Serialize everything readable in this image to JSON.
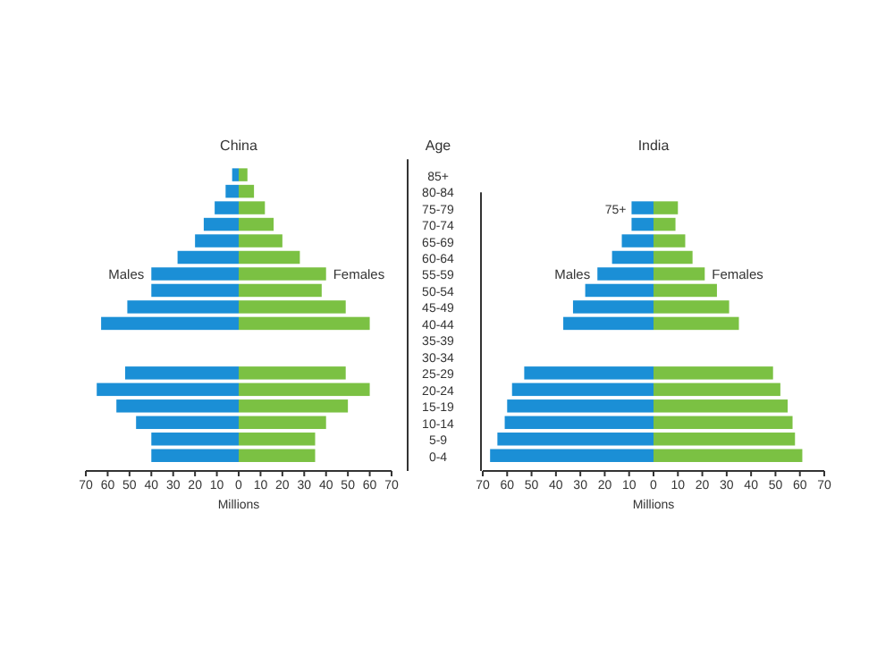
{
  "chart_data": [
    {
      "type": "bar",
      "orientation": "horizontal",
      "stacked": true,
      "title": "China",
      "ylabel": "Age",
      "xlabel": "Millions",
      "grid": false,
      "categories": [
        "85+",
        "80-84",
        "75-79",
        "70-74",
        "65-69",
        "60-64",
        "55-59",
        "50-54",
        "45-49",
        "40-44",
        "35-39",
        "30-34",
        "25-29",
        "20-24",
        "15-19",
        "10-14",
        "5-9",
        "0-4"
      ],
      "series": [
        {
          "name": "Males",
          "color": "#1b8fd6",
          "values": [
            -3,
            -6,
            -11,
            -16,
            -20,
            -28,
            -40,
            -40,
            -51,
            -63,
            null,
            null,
            -52,
            -65,
            -56,
            -47,
            -40,
            -40
          ]
        },
        {
          "name": "Females",
          "color": "#7bc143",
          "values": [
            4,
            7,
            12,
            16,
            20,
            28,
            40,
            38,
            49,
            60,
            null,
            null,
            49,
            60,
            50,
            40,
            35,
            35
          ]
        }
      ],
      "xlim": [
        -70,
        70
      ],
      "xticks": [
        {
          "value": -70,
          "label": "70"
        },
        {
          "value": -60,
          "label": "60"
        },
        {
          "value": -50,
          "label": "50"
        },
        {
          "value": -40,
          "label": "40"
        },
        {
          "value": -30,
          "label": "30"
        },
        {
          "value": -20,
          "label": "20"
        },
        {
          "value": -10,
          "label": "10"
        },
        0,
        10,
        20,
        30,
        40,
        50,
        60,
        70
      ]
    },
    {
      "type": "bar",
      "orientation": "horizontal",
      "stacked": true,
      "title": "India",
      "xlabel": "Millions",
      "grid": false,
      "annotations": [
        "75+"
      ],
      "categories": [
        null,
        null,
        null,
        null,
        null,
        null,
        null,
        null,
        null,
        null,
        null,
        null,
        null,
        null,
        null,
        null
      ],
      "series": [
        {
          "name": "Males",
          "color": "#1b8fd6",
          "values": [
            -9,
            -9,
            -13,
            -17,
            -23,
            -28,
            -33,
            -37,
            null,
            null,
            -53,
            -58,
            -60,
            -61,
            -64,
            -67
          ]
        },
        {
          "name": "Females",
          "color": "#7bc143",
          "values": [
            10,
            9,
            13,
            16,
            21,
            26,
            31,
            35,
            null,
            null,
            49,
            52,
            55,
            57,
            58,
            61
          ]
        }
      ],
      "xlim": [
        -70,
        70
      ],
      "xticks": [
        {
          "value": -70,
          "label": "70"
        },
        {
          "value": -60,
          "label": "60"
        },
        {
          "value": -50,
          "label": "50"
        },
        {
          "value": -40,
          "label": "40"
        },
        {
          "value": -30,
          "label": "30"
        },
        {
          "value": -20,
          "label": "20"
        },
        {
          "value": -10,
          "label": "10"
        },
        0,
        10,
        20,
        30,
        40,
        50,
        60,
        70
      ]
    }
  ]
}
